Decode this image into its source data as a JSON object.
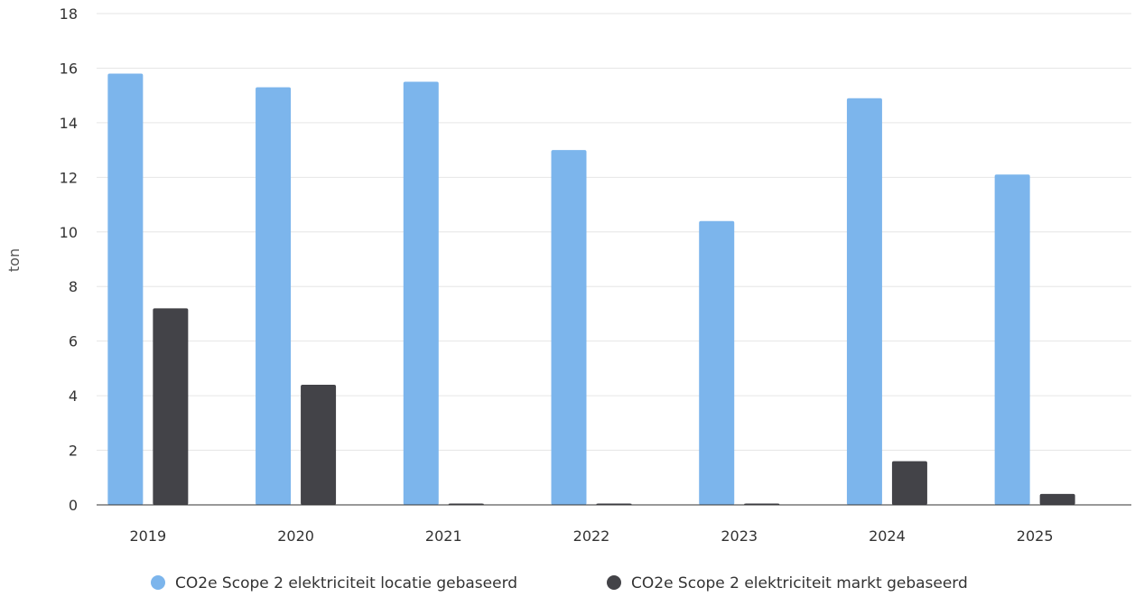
{
  "chart_data": {
    "type": "bar",
    "categories": [
      "2019",
      "2020",
      "2021",
      "2022",
      "2023",
      "2024",
      "2025"
    ],
    "series": [
      {
        "name": "CO2e Scope 2 elektriciteit locatie gebaseerd",
        "color": "#7cb5ec",
        "values": [
          15.8,
          15.3,
          15.5,
          13.0,
          10.4,
          14.9,
          12.1
        ]
      },
      {
        "name": "CO2e Scope 2 elektriciteit markt gebaseerd",
        "color": "#434348",
        "values": [
          7.2,
          4.4,
          0,
          0,
          0,
          1.6,
          0.4
        ]
      }
    ],
    "xlabel": "",
    "ylabel": "ton",
    "ylim": [
      0,
      18
    ],
    "yticks": [
      0,
      2,
      4,
      6,
      8,
      10,
      12,
      14,
      16,
      18
    ],
    "grid": true,
    "legend_position": "bottom-center"
  }
}
